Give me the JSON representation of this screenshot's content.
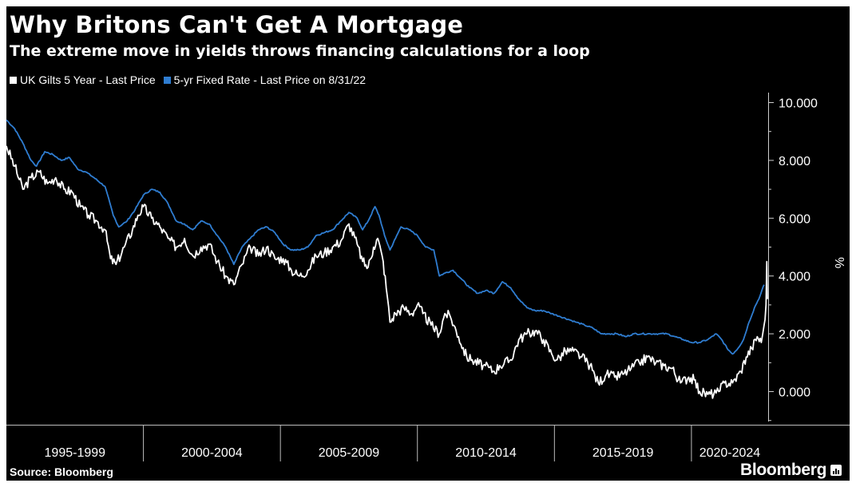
{
  "chart_data": {
    "type": "line",
    "title": "Why Britons Can't Get A Mortgage",
    "subtitle": "The extreme move in yields throws financing calculations for a loop",
    "source": "Source: Bloomberg",
    "brand": "Bloomberg",
    "ylabel": "%",
    "ylim": [
      -1,
      10.3
    ],
    "yticks": [
      0,
      2,
      4,
      6,
      8,
      10
    ],
    "ytick_labels": [
      "0.000",
      "2.000",
      "4.000",
      "6.000",
      "8.000",
      "10.000"
    ],
    "xlim": [
      1995,
      2022.8
    ],
    "x_categories": [
      {
        "label": "1995-1999",
        "start": 1995,
        "end": 2000
      },
      {
        "label": "2000-2004",
        "start": 2000,
        "end": 2005
      },
      {
        "label": "2005-2009",
        "start": 2005,
        "end": 2010
      },
      {
        "label": "2010-2014",
        "start": 2010,
        "end": 2015
      },
      {
        "label": "2015-2019",
        "start": 2015,
        "end": 2020
      },
      {
        "label": "2020-2024",
        "start": 2020,
        "end": 2025
      }
    ],
    "series": [
      {
        "name": "UK Gilts 5 Year - Last Price",
        "color": "#ffffff",
        "points": [
          [
            1995.0,
            8.5
          ],
          [
            1995.3,
            7.8
          ],
          [
            1995.6,
            7.0
          ],
          [
            1995.9,
            7.4
          ],
          [
            1996.2,
            7.6
          ],
          [
            1996.5,
            7.2
          ],
          [
            1996.8,
            7.4
          ],
          [
            1997.1,
            7.0
          ],
          [
            1997.4,
            6.9
          ],
          [
            1997.7,
            6.4
          ],
          [
            1998.0,
            6.1
          ],
          [
            1998.3,
            5.9
          ],
          [
            1998.6,
            5.6
          ],
          [
            1998.8,
            4.6
          ],
          [
            1999.0,
            4.4
          ],
          [
            1999.3,
            5.0
          ],
          [
            1999.6,
            5.6
          ],
          [
            1999.8,
            6.1
          ],
          [
            2000.0,
            6.4
          ],
          [
            2000.3,
            6.0
          ],
          [
            2000.6,
            5.7
          ],
          [
            2000.9,
            5.3
          ],
          [
            2001.2,
            5.0
          ],
          [
            2001.5,
            5.3
          ],
          [
            2001.8,
            4.7
          ],
          [
            2002.1,
            5.0
          ],
          [
            2002.4,
            5.1
          ],
          [
            2002.7,
            4.5
          ],
          [
            2003.0,
            4.0
          ],
          [
            2003.3,
            3.7
          ],
          [
            2003.6,
            4.4
          ],
          [
            2003.9,
            5.0
          ],
          [
            2004.2,
            4.7
          ],
          [
            2004.5,
            5.0
          ],
          [
            2004.8,
            4.6
          ],
          [
            2005.1,
            4.6
          ],
          [
            2005.4,
            4.2
          ],
          [
            2005.7,
            4.0
          ],
          [
            2006.0,
            4.2
          ],
          [
            2006.3,
            4.7
          ],
          [
            2006.6,
            4.8
          ],
          [
            2006.9,
            5.0
          ],
          [
            2007.2,
            5.2
          ],
          [
            2007.5,
            5.8
          ],
          [
            2007.8,
            5.1
          ],
          [
            2008.0,
            4.5
          ],
          [
            2008.2,
            4.3
          ],
          [
            2008.4,
            5.0
          ],
          [
            2008.55,
            5.3
          ],
          [
            2008.75,
            4.5
          ],
          [
            2008.9,
            3.3
          ],
          [
            2009.0,
            2.4
          ],
          [
            2009.2,
            2.7
          ],
          [
            2009.5,
            2.9
          ],
          [
            2009.8,
            2.7
          ],
          [
            2010.0,
            3.0
          ],
          [
            2010.2,
            2.7
          ],
          [
            2010.5,
            2.3
          ],
          [
            2010.8,
            2.0
          ],
          [
            2011.0,
            2.7
          ],
          [
            2011.2,
            2.6
          ],
          [
            2011.5,
            1.9
          ],
          [
            2011.8,
            1.2
          ],
          [
            2012.0,
            1.1
          ],
          [
            2012.4,
            0.9
          ],
          [
            2012.8,
            0.7
          ],
          [
            2013.0,
            0.9
          ],
          [
            2013.4,
            1.1
          ],
          [
            2013.7,
            1.8
          ],
          [
            2014.0,
            2.0
          ],
          [
            2014.3,
            2.1
          ],
          [
            2014.6,
            1.8
          ],
          [
            2014.9,
            1.3
          ],
          [
            2015.1,
            1.1
          ],
          [
            2015.4,
            1.4
          ],
          [
            2015.7,
            1.4
          ],
          [
            2016.0,
            1.2
          ],
          [
            2016.3,
            0.9
          ],
          [
            2016.6,
            0.3
          ],
          [
            2016.9,
            0.6
          ],
          [
            2017.2,
            0.5
          ],
          [
            2017.5,
            0.6
          ],
          [
            2017.8,
            0.8
          ],
          [
            2018.1,
            1.0
          ],
          [
            2018.4,
            1.2
          ],
          [
            2018.7,
            1.0
          ],
          [
            2019.0,
            0.9
          ],
          [
            2019.3,
            0.8
          ],
          [
            2019.6,
            0.3
          ],
          [
            2019.9,
            0.5
          ],
          [
            2020.1,
            0.4
          ],
          [
            2020.3,
            0.0
          ],
          [
            2020.6,
            -0.1
          ],
          [
            2020.9,
            -0.05
          ],
          [
            2021.0,
            0.0
          ],
          [
            2021.2,
            0.3
          ],
          [
            2021.5,
            0.3
          ],
          [
            2021.8,
            0.7
          ],
          [
            2022.0,
            1.2
          ],
          [
            2022.2,
            1.5
          ],
          [
            2022.4,
            1.9
          ],
          [
            2022.55,
            1.7
          ],
          [
            2022.65,
            2.3
          ],
          [
            2022.72,
            3.0
          ],
          [
            2022.75,
            4.5
          ],
          [
            2022.77,
            3.2
          ]
        ]
      },
      {
        "name": "5-yr Fixed Rate - Last Price on 8/31/22",
        "color": "#2f7dd1",
        "points": [
          [
            1995.0,
            9.4
          ],
          [
            1995.3,
            9.1
          ],
          [
            1995.6,
            8.6
          ],
          [
            1995.9,
            8.0
          ],
          [
            1996.1,
            7.8
          ],
          [
            1996.4,
            8.3
          ],
          [
            1996.7,
            8.2
          ],
          [
            1997.0,
            8.0
          ],
          [
            1997.3,
            8.1
          ],
          [
            1997.6,
            7.7
          ],
          [
            1997.9,
            7.6
          ],
          [
            1998.2,
            7.4
          ],
          [
            1998.6,
            7.1
          ],
          [
            1998.9,
            6.1
          ],
          [
            1999.1,
            5.7
          ],
          [
            1999.4,
            5.9
          ],
          [
            1999.7,
            6.3
          ],
          [
            2000.0,
            6.8
          ],
          [
            2000.3,
            7.0
          ],
          [
            2000.6,
            6.9
          ],
          [
            2000.9,
            6.5
          ],
          [
            2001.2,
            5.9
          ],
          [
            2001.5,
            5.8
          ],
          [
            2001.8,
            5.6
          ],
          [
            2002.1,
            5.9
          ],
          [
            2002.4,
            5.8
          ],
          [
            2002.7,
            5.4
          ],
          [
            2003.0,
            5.0
          ],
          [
            2003.3,
            4.4
          ],
          [
            2003.6,
            5.0
          ],
          [
            2003.9,
            5.3
          ],
          [
            2004.2,
            5.6
          ],
          [
            2004.5,
            5.7
          ],
          [
            2004.8,
            5.5
          ],
          [
            2005.1,
            5.1
          ],
          [
            2005.4,
            4.9
          ],
          [
            2005.7,
            4.9
          ],
          [
            2006.0,
            5.0
          ],
          [
            2006.3,
            5.4
          ],
          [
            2006.6,
            5.5
          ],
          [
            2006.9,
            5.6
          ],
          [
            2007.2,
            5.9
          ],
          [
            2007.5,
            6.2
          ],
          [
            2007.8,
            6.0
          ],
          [
            2008.0,
            5.6
          ],
          [
            2008.2,
            5.9
          ],
          [
            2008.45,
            6.4
          ],
          [
            2008.6,
            6.1
          ],
          [
            2008.8,
            5.4
          ],
          [
            2009.0,
            4.9
          ],
          [
            2009.2,
            5.3
          ],
          [
            2009.4,
            5.7
          ],
          [
            2009.7,
            5.6
          ],
          [
            2010.0,
            5.4
          ],
          [
            2010.3,
            5.0
          ],
          [
            2010.6,
            4.9
          ],
          [
            2010.8,
            4.0
          ],
          [
            2011.0,
            4.1
          ],
          [
            2011.3,
            4.2
          ],
          [
            2011.6,
            3.9
          ],
          [
            2011.9,
            3.6
          ],
          [
            2012.2,
            3.4
          ],
          [
            2012.5,
            3.5
          ],
          [
            2012.8,
            3.4
          ],
          [
            2013.1,
            3.8
          ],
          [
            2013.4,
            3.6
          ],
          [
            2013.7,
            3.2
          ],
          [
            2014.0,
            2.9
          ],
          [
            2014.3,
            2.8
          ],
          [
            2014.6,
            2.8
          ],
          [
            2014.9,
            2.7
          ],
          [
            2015.2,
            2.6
          ],
          [
            2015.5,
            2.5
          ],
          [
            2015.8,
            2.4
          ],
          [
            2016.1,
            2.3
          ],
          [
            2016.4,
            2.2
          ],
          [
            2016.7,
            2.0
          ],
          [
            2017.0,
            2.0
          ],
          [
            2017.3,
            2.0
          ],
          [
            2017.6,
            1.9
          ],
          [
            2017.9,
            2.0
          ],
          [
            2018.2,
            2.0
          ],
          [
            2018.5,
            2.0
          ],
          [
            2018.8,
            2.0
          ],
          [
            2019.1,
            2.0
          ],
          [
            2019.4,
            1.9
          ],
          [
            2019.7,
            1.8
          ],
          [
            2020.0,
            1.7
          ],
          [
            2020.3,
            1.7
          ],
          [
            2020.6,
            1.8
          ],
          [
            2020.9,
            2.0
          ],
          [
            2021.1,
            1.8
          ],
          [
            2021.3,
            1.5
          ],
          [
            2021.5,
            1.3
          ],
          [
            2021.7,
            1.5
          ],
          [
            2021.9,
            1.8
          ],
          [
            2022.1,
            2.4
          ],
          [
            2022.3,
            2.9
          ],
          [
            2022.5,
            3.3
          ],
          [
            2022.65,
            3.7
          ]
        ]
      }
    ]
  }
}
